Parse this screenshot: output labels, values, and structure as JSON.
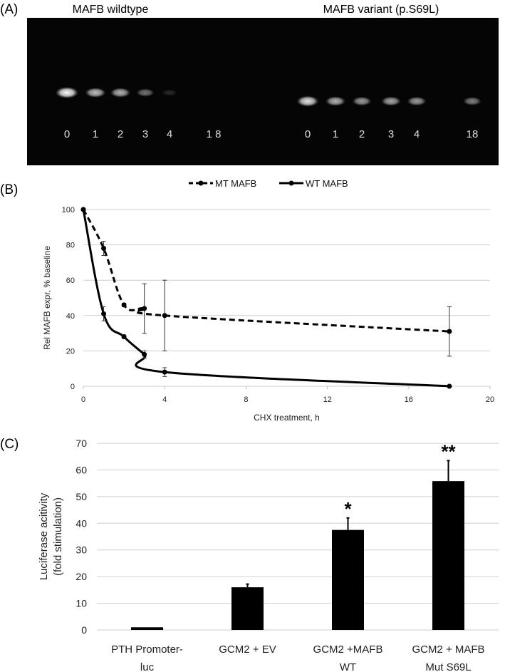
{
  "chart_data": [
    {
      "type": "gel",
      "panel_label": "(A)",
      "groups": [
        {
          "title": "MAFB wildtype",
          "lanes": [
            "0",
            "1",
            "2",
            "3",
            "4",
            "1 8"
          ],
          "intensity": [
            1.0,
            0.75,
            0.7,
            0.45,
            0.15,
            0.0
          ]
        },
        {
          "title": "MAFB variant (p.S69L)",
          "lanes": [
            "0",
            "1",
            "2",
            "3",
            "4",
            "18"
          ],
          "intensity": [
            0.9,
            0.7,
            0.6,
            0.65,
            0.6,
            0.5
          ]
        }
      ]
    },
    {
      "type": "line",
      "panel_label": "(B)",
      "xlabel": "CHX treatment, h",
      "ylabel": "Rel MAFB expr, % baseline",
      "xlim": [
        0,
        20
      ],
      "ylim": [
        0,
        100
      ],
      "xticks": [
        0,
        4,
        8,
        12,
        16,
        20
      ],
      "yticks": [
        0,
        20,
        40,
        60,
        80,
        100
      ],
      "grid": true,
      "legend_position": "top-center",
      "series": [
        {
          "name": "MT MAFB",
          "style": "dashed",
          "x": [
            0,
            1,
            2,
            3,
            4,
            18
          ],
          "y": [
            100,
            78,
            46,
            44,
            40,
            31
          ],
          "err": [
            0,
            4,
            1,
            14,
            20,
            14
          ]
        },
        {
          "name": "WT MAFB",
          "style": "solid",
          "x": [
            0,
            1,
            2,
            3,
            4,
            18
          ],
          "y": [
            100,
            41,
            28,
            18,
            8,
            0
          ],
          "err": [
            0,
            4,
            1,
            2,
            2.5,
            0
          ]
        }
      ]
    },
    {
      "type": "bar",
      "panel_label": "(C)",
      "ylabel_lines": [
        "Luciferase  acitivity",
        "(fold stimulation)"
      ],
      "ylim": [
        0,
        70
      ],
      "yticks": [
        0,
        10,
        20,
        30,
        40,
        50,
        60,
        70
      ],
      "grid": true,
      "categories": [
        [
          "PTH Promoter-",
          "luc"
        ],
        [
          "GCM2 + EV",
          ""
        ],
        [
          "GCM2 +MAFB",
          "WT"
        ],
        [
          "GCM2 + MAFB",
          "Mut S69L"
        ]
      ],
      "values": [
        1,
        16,
        37.5,
        55.8
      ],
      "err": [
        0,
        1.2,
        4.5,
        7.7
      ],
      "annotations": [
        "",
        "",
        "*",
        "**"
      ]
    }
  ]
}
